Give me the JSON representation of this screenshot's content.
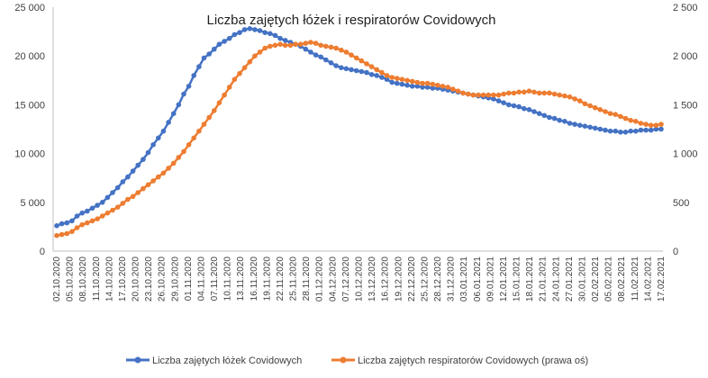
{
  "chart_data": {
    "type": "line",
    "title": "Liczba zajętych łóżek i respiratorów Covidowych",
    "xlabel": "",
    "ylabel_left": "",
    "ylabel_right": "",
    "ylim_left": [
      0,
      25000
    ],
    "ylim_right": [
      0,
      2500
    ],
    "left_ticks": [
      "0",
      "5 000",
      "10 000",
      "15 000",
      "20 000",
      "25 000"
    ],
    "right_ticks": [
      "0",
      "500",
      "1 000",
      "1 500",
      "2 000",
      "2 500"
    ],
    "grid": false,
    "legend_position": "bottom",
    "x_tick_labels": [
      "02.10.2020",
      "05.10.2020",
      "08.10.2020",
      "11.10.2020",
      "14.10.2020",
      "17.10.2020",
      "20.10.2020",
      "23.10.2020",
      "26.10.2020",
      "29.10.2020",
      "01.11.2020",
      "04.11.2020",
      "07.11.2020",
      "10.11.2020",
      "13.11.2020",
      "16.11.2020",
      "19.11.2020",
      "22.11.2020",
      "25.11.2020",
      "28.11.2020",
      "01.12.2020",
      "04.12.2020",
      "07.12.2020",
      "10.12.2020",
      "13.12.2020",
      "16.12.2020",
      "19.12.2020",
      "22.12.2020",
      "25.12.2020",
      "28.12.2020",
      "31.12.2020",
      "03.01.2021",
      "06.01.2021",
      "09.01.2021",
      "12.01.2021",
      "15.01.2021",
      "18.01.2021",
      "21.01.2021",
      "24.01.2021",
      "27.01.2021",
      "30.01.2021",
      "02.02.2021",
      "05.02.2021",
      "08.02.2021",
      "11.02.2021",
      "14.02.2021",
      "17.02.2021"
    ],
    "series": [
      {
        "name": "Liczba zajętych łóżek Covidowych",
        "axis": "left",
        "color": "#4472C4",
        "values": [
          2600,
          2800,
          2900,
          3100,
          3600,
          3900,
          4100,
          4400,
          4700,
          5000,
          5500,
          6000,
          6500,
          7100,
          7600,
          8200,
          8800,
          9400,
          10100,
          10900,
          11600,
          12300,
          13200,
          14100,
          15000,
          16100,
          16900,
          18000,
          18900,
          19800,
          20200,
          20700,
          21200,
          21500,
          21800,
          22200,
          22400,
          22700,
          22800,
          22700,
          22600,
          22400,
          22300,
          22100,
          21800,
          21600,
          21400,
          21200,
          21000,
          20700,
          20400,
          20100,
          19900,
          19600,
          19300,
          19000,
          18800,
          18700,
          18600,
          18500,
          18400,
          18300,
          18100,
          18000,
          17800,
          17600,
          17300,
          17200,
          17100,
          17000,
          16900,
          16900,
          16800,
          16800,
          16700,
          16700,
          16600,
          16500,
          16400,
          16300,
          16200,
          16100,
          16000,
          15900,
          15800,
          15700,
          15600,
          15400,
          15200,
          15000,
          14900,
          14800,
          14600,
          14500,
          14300,
          14100,
          13900,
          13700,
          13600,
          13400,
          13300,
          13100,
          13000,
          12900,
          12800,
          12700,
          12600,
          12500,
          12400,
          12300,
          12300,
          12200,
          12200,
          12300,
          12300,
          12400,
          12400,
          12400,
          12500,
          12500
        ]
      },
      {
        "name": "Liczba zajętych respiratorów Covidowych (prawa oś)",
        "axis": "right",
        "color": "#ED7D31",
        "values": [
          160,
          170,
          180,
          200,
          240,
          270,
          290,
          310,
          330,
          360,
          390,
          420,
          450,
          490,
          530,
          560,
          600,
          640,
          680,
          720,
          760,
          800,
          850,
          900,
          960,
          1020,
          1090,
          1160,
          1230,
          1300,
          1370,
          1440,
          1520,
          1600,
          1680,
          1760,
          1820,
          1880,
          1940,
          2000,
          2040,
          2080,
          2100,
          2110,
          2120,
          2110,
          2110,
          2120,
          2120,
          2130,
          2140,
          2130,
          2110,
          2100,
          2090,
          2080,
          2060,
          2040,
          2010,
          1980,
          1950,
          1920,
          1890,
          1860,
          1830,
          1800,
          1780,
          1770,
          1760,
          1750,
          1740,
          1730,
          1720,
          1720,
          1710,
          1700,
          1690,
          1680,
          1660,
          1640,
          1620,
          1610,
          1600,
          1600,
          1600,
          1600,
          1600,
          1600,
          1610,
          1620,
          1620,
          1630,
          1630,
          1640,
          1630,
          1620,
          1620,
          1620,
          1610,
          1600,
          1590,
          1580,
          1560,
          1540,
          1510,
          1490,
          1470,
          1450,
          1430,
          1410,
          1400,
          1380,
          1360,
          1340,
          1330,
          1310,
          1300,
          1290,
          1290,
          1300
        ]
      }
    ]
  }
}
